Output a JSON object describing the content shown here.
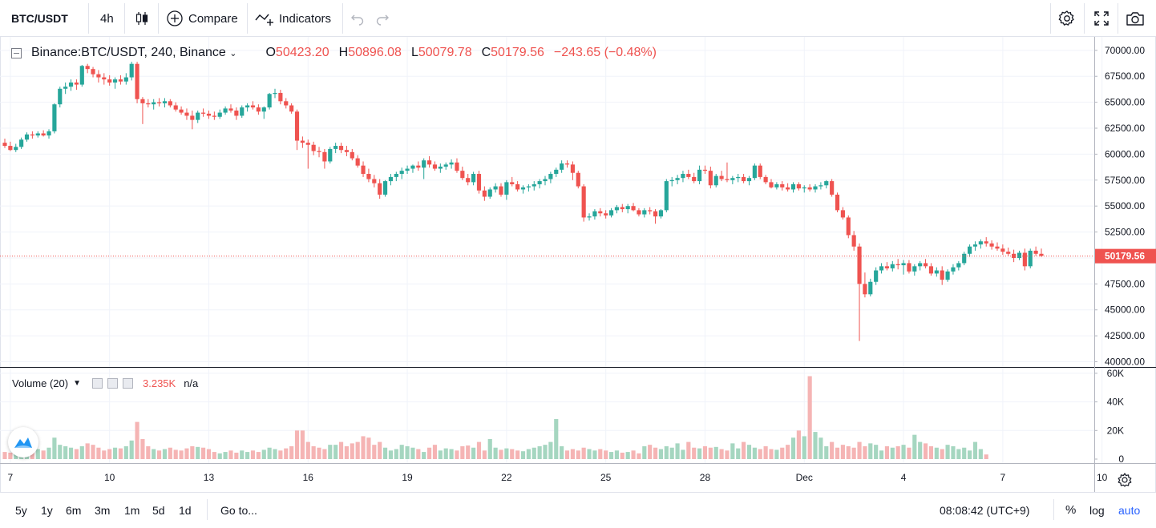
{
  "toolbar": {
    "symbol": "BTC/USDT",
    "interval": "4h",
    "compare_label": "Compare",
    "indicators_label": "Indicators"
  },
  "legend": {
    "title": "Binance:BTC/USDT, 240, Binance",
    "open_label": "O",
    "open": "50423.20",
    "high_label": "H",
    "high": "50896.08",
    "low_label": "L",
    "low": "50079.78",
    "close_label": "C",
    "close": "50179.56",
    "change": "−243.65 (−0.48%)"
  },
  "volume_legend": {
    "title": "Volume (20)",
    "value": "3.235K",
    "na": "n/a"
  },
  "price_axis": {
    "labels": [
      "70000.00",
      "67500.00",
      "65000.00",
      "62500.00",
      "60000.00",
      "57500.00",
      "55000.00",
      "52500.00",
      "47500.00",
      "45000.00",
      "42500.00",
      "40000.00"
    ],
    "values": [
      70000,
      67500,
      65000,
      62500,
      60000,
      57500,
      55000,
      52500,
      47500,
      45000,
      42500,
      40000
    ],
    "last_price_label": "50179.56",
    "last_price": 50179.56
  },
  "volume_axis": {
    "labels": [
      "60K",
      "40K",
      "20K",
      "0"
    ],
    "values": [
      60000,
      40000,
      20000,
      0
    ]
  },
  "time_axis": {
    "labels": [
      "7",
      "10",
      "13",
      "16",
      "19",
      "22",
      "25",
      "28",
      "Dec",
      "4",
      "7",
      "10"
    ],
    "dates": [
      "2021-11-07",
      "2021-11-10",
      "2021-11-13",
      "2021-11-16",
      "2021-11-19",
      "2021-11-22",
      "2021-11-25",
      "2021-11-28",
      "2021-12-01",
      "2021-12-04",
      "2021-12-07",
      "2021-12-10"
    ]
  },
  "bottom_bar": {
    "ranges": [
      "5y",
      "1y",
      "6m",
      "3m",
      "1m",
      "5d",
      "1d"
    ],
    "goto": "Go to...",
    "clock": "08:08:42 (UTC+9)",
    "percent": "%",
    "log": "log",
    "auto": "auto"
  },
  "colors": {
    "up": "#26a69a",
    "down": "#ef5350",
    "up_volume": "#a5d6c0",
    "down_volume": "#f5b4b4",
    "grid": "#f0f3fa",
    "axis_text": "#131722",
    "accent": "#2962ff"
  },
  "chart_data": {
    "type": "candlestick",
    "interval": "240",
    "y_range": [
      39500,
      71300
    ],
    "volume_range": [
      0,
      65000
    ],
    "first_bar": "2021-11-06T20:00",
    "last_bar": "2021-12-09T08:00",
    "ohlc": [
      [
        61100,
        61500,
        60600,
        60800
      ],
      [
        60800,
        61200,
        60300,
        60400
      ],
      [
        60400,
        61000,
        60200,
        60700
      ],
      [
        60700,
        61600,
        60500,
        61400
      ],
      [
        61400,
        62100,
        61200,
        61900
      ],
      [
        61900,
        62200,
        61500,
        61800
      ],
      [
        61800,
        62200,
        61600,
        62000
      ],
      [
        62000,
        62300,
        61700,
        61800
      ],
      [
        61800,
        62400,
        61500,
        62200
      ],
      [
        62200,
        64900,
        62000,
        64800
      ],
      [
        64800,
        66500,
        64500,
        66300
      ],
      [
        66300,
        66900,
        65800,
        66500
      ],
      [
        66500,
        67200,
        66100,
        66900
      ],
      [
        66900,
        67200,
        66200,
        66700
      ],
      [
        66700,
        68600,
        66500,
        68500
      ],
      [
        68500,
        68700,
        67800,
        68200
      ],
      [
        68200,
        68400,
        67400,
        67700
      ],
      [
        67700,
        68100,
        66900,
        67400
      ],
      [
        67400,
        67800,
        66700,
        67200
      ],
      [
        67200,
        67600,
        66600,
        66900
      ],
      [
        66900,
        67400,
        66300,
        67200
      ],
      [
        67200,
        67600,
        66700,
        67000
      ],
      [
        67000,
        67800,
        66700,
        67400
      ],
      [
        67400,
        68900,
        67100,
        68700
      ],
      [
        68700,
        68900,
        64900,
        65300
      ],
      [
        65300,
        65500,
        62900,
        64900
      ],
      [
        64900,
        65300,
        64500,
        64800
      ],
      [
        64800,
        65300,
        64300,
        65000
      ],
      [
        65000,
        65400,
        64600,
        64900
      ],
      [
        64900,
        65400,
        64500,
        65100
      ],
      [
        65100,
        65300,
        64500,
        64700
      ],
      [
        64700,
        65000,
        64100,
        64300
      ],
      [
        64300,
        64600,
        63800,
        64000
      ],
      [
        64000,
        64400,
        63300,
        63700
      ],
      [
        63700,
        64200,
        62400,
        63300
      ],
      [
        63300,
        64200,
        63000,
        64000
      ],
      [
        64000,
        64400,
        63600,
        63900
      ],
      [
        63900,
        64200,
        63400,
        63700
      ],
      [
        63700,
        64100,
        63300,
        63600
      ],
      [
        63600,
        64300,
        63400,
        64000
      ],
      [
        64000,
        64600,
        63800,
        64400
      ],
      [
        64400,
        64800,
        64000,
        64200
      ],
      [
        64200,
        64500,
        63300,
        63700
      ],
      [
        63700,
        64700,
        63500,
        64500
      ],
      [
        64500,
        64900,
        64100,
        64700
      ],
      [
        64700,
        65100,
        64300,
        64500
      ],
      [
        64500,
        64800,
        63800,
        64100
      ],
      [
        64100,
        64600,
        63400,
        64500
      ],
      [
        64500,
        65900,
        64300,
        65800
      ],
      [
        65800,
        66300,
        65400,
        65900
      ],
      [
        65900,
        66200,
        64800,
        65100
      ],
      [
        65100,
        65400,
        64400,
        64700
      ],
      [
        64700,
        64900,
        63900,
        64100
      ],
      [
        64100,
        64300,
        60400,
        61300
      ],
      [
        61300,
        61700,
        60600,
        61100
      ],
      [
        61100,
        61400,
        58600,
        60900
      ],
      [
        60900,
        61200,
        59900,
        60300
      ],
      [
        60300,
        60700,
        59700,
        60200
      ],
      [
        60200,
        60500,
        58600,
        59300
      ],
      [
        59300,
        60700,
        59100,
        60500
      ],
      [
        60500,
        61100,
        60100,
        60800
      ],
      [
        60800,
        61100,
        60100,
        60400
      ],
      [
        60400,
        60800,
        59800,
        60200
      ],
      [
        60200,
        60500,
        59400,
        59600
      ],
      [
        59600,
        59900,
        58700,
        58900
      ],
      [
        58900,
        59300,
        57800,
        58100
      ],
      [
        58100,
        58600,
        57300,
        57600
      ],
      [
        57600,
        58000,
        56800,
        57200
      ],
      [
        57200,
        57600,
        55700,
        56100
      ],
      [
        56100,
        57500,
        55900,
        57400
      ],
      [
        57400,
        58100,
        57000,
        57800
      ],
      [
        57800,
        58300,
        57400,
        58100
      ],
      [
        58100,
        58700,
        57600,
        58400
      ],
      [
        58400,
        58900,
        58100,
        58600
      ],
      [
        58600,
        59000,
        58200,
        58900
      ],
      [
        58900,
        59300,
        58400,
        58700
      ],
      [
        58700,
        59600,
        57600,
        59400
      ],
      [
        59400,
        59800,
        58700,
        59000
      ],
      [
        59000,
        59300,
        58400,
        58600
      ],
      [
        58600,
        59100,
        58200,
        58800
      ],
      [
        58800,
        59200,
        58500,
        59000
      ],
      [
        59000,
        59500,
        58600,
        59200
      ],
      [
        59200,
        59600,
        58200,
        58400
      ],
      [
        58400,
        58800,
        57500,
        57700
      ],
      [
        57700,
        58100,
        57000,
        57300
      ],
      [
        57300,
        58300,
        57000,
        58100
      ],
      [
        58100,
        58400,
        56200,
        56500
      ],
      [
        56500,
        56900,
        55500,
        55900
      ],
      [
        55900,
        56800,
        55700,
        56600
      ],
      [
        56600,
        57200,
        56300,
        56900
      ],
      [
        56900,
        57200,
        55900,
        56100
      ],
      [
        56100,
        57500,
        55600,
        57300
      ],
      [
        57300,
        57800,
        56900,
        57100
      ],
      [
        57100,
        57400,
        56400,
        56600
      ],
      [
        56600,
        57000,
        56200,
        56800
      ],
      [
        56800,
        57100,
        56400,
        56900
      ],
      [
        56900,
        57400,
        56500,
        57100
      ],
      [
        57100,
        57600,
        56700,
        57400
      ],
      [
        57400,
        57900,
        57000,
        57600
      ],
      [
        57600,
        58300,
        57200,
        58100
      ],
      [
        58100,
        58700,
        57800,
        58500
      ],
      [
        58500,
        59400,
        58200,
        59100
      ],
      [
        59100,
        59400,
        58700,
        59000
      ],
      [
        59000,
        59300,
        57500,
        58200
      ],
      [
        58200,
        58400,
        56700,
        56900
      ],
      [
        56900,
        57100,
        53500,
        53900
      ],
      [
        53900,
        54300,
        53600,
        54000
      ],
      [
        54000,
        54700,
        53700,
        54500
      ],
      [
        54500,
        54800,
        54000,
        54300
      ],
      [
        54300,
        54600,
        53800,
        54100
      ],
      [
        54100,
        54800,
        53900,
        54600
      ],
      [
        54600,
        55100,
        54300,
        54900
      ],
      [
        54900,
        55200,
        54400,
        54700
      ],
      [
        54700,
        55200,
        54300,
        55000
      ],
      [
        55000,
        55300,
        54500,
        54600
      ],
      [
        54600,
        54800,
        54000,
        54200
      ],
      [
        54200,
        54800,
        53900,
        54600
      ],
      [
        54600,
        54900,
        54200,
        54500
      ],
      [
        54500,
        54700,
        53300,
        54000
      ],
      [
        54000,
        54700,
        53800,
        54600
      ],
      [
        54600,
        57600,
        54400,
        57400
      ],
      [
        57400,
        57800,
        56900,
        57500
      ],
      [
        57500,
        58000,
        57100,
        57700
      ],
      [
        57700,
        58400,
        57300,
        58100
      ],
      [
        58100,
        58500,
        57600,
        57800
      ],
      [
        57800,
        58200,
        57200,
        57400
      ],
      [
        57400,
        58900,
        57100,
        58500
      ],
      [
        58500,
        58900,
        58100,
        58400
      ],
      [
        58400,
        58800,
        56700,
        57000
      ],
      [
        57000,
        58100,
        56800,
        57900
      ],
      [
        57900,
        58400,
        57400,
        57600
      ],
      [
        57600,
        59200,
        57300,
        57500
      ],
      [
        57500,
        57900,
        57100,
        57700
      ],
      [
        57700,
        58100,
        57300,
        57800
      ],
      [
        57800,
        58100,
        57200,
        57400
      ],
      [
        57400,
        57900,
        57000,
        57700
      ],
      [
        57700,
        59100,
        57500,
        58900
      ],
      [
        58900,
        59100,
        57600,
        57800
      ],
      [
        57800,
        58000,
        57100,
        57300
      ],
      [
        57300,
        57600,
        56700,
        56800
      ],
      [
        56800,
        57300,
        56600,
        57100
      ],
      [
        57100,
        57400,
        56500,
        56800
      ],
      [
        56800,
        57200,
        56400,
        56600
      ],
      [
        56600,
        57300,
        56300,
        57100
      ],
      [
        57100,
        57300,
        56500,
        56700
      ],
      [
        56700,
        57000,
        56300,
        56800
      ],
      [
        56800,
        57100,
        56400,
        56600
      ],
      [
        56600,
        57100,
        56300,
        56900
      ],
      [
        56900,
        57300,
        56600,
        57000
      ],
      [
        57000,
        57500,
        56700,
        57400
      ],
      [
        57400,
        57600,
        55900,
        56100
      ],
      [
        56100,
        56300,
        54400,
        54600
      ],
      [
        54600,
        54900,
        53700,
        53900
      ],
      [
        53900,
        54100,
        51900,
        52200
      ],
      [
        52200,
        52600,
        50700,
        51100
      ],
      [
        51100,
        51400,
        42000,
        47500
      ],
      [
        47500,
        48600,
        46200,
        46500
      ],
      [
        46500,
        48000,
        46300,
        47700
      ],
      [
        47700,
        49100,
        47400,
        48800
      ],
      [
        48800,
        49500,
        48500,
        49200
      ],
      [
        49200,
        49600,
        48800,
        49000
      ],
      [
        49000,
        49700,
        48700,
        49400
      ],
      [
        49400,
        49900,
        48900,
        49300
      ],
      [
        49300,
        49800,
        48400,
        49500
      ],
      [
        49500,
        49800,
        48500,
        48700
      ],
      [
        48700,
        49400,
        48300,
        49200
      ],
      [
        49200,
        49700,
        48800,
        49500
      ],
      [
        49500,
        49900,
        49000,
        49200
      ],
      [
        49200,
        49500,
        48300,
        48500
      ],
      [
        48500,
        49100,
        48200,
        48800
      ],
      [
        48800,
        49200,
        47400,
        47900
      ],
      [
        47900,
        48900,
        47700,
        48700
      ],
      [
        48700,
        49400,
        48400,
        49100
      ],
      [
        49100,
        49700,
        48800,
        49500
      ],
      [
        49500,
        50600,
        49300,
        50400
      ],
      [
        50400,
        51300,
        50100,
        51100
      ],
      [
        51100,
        51600,
        50700,
        51300
      ],
      [
        51300,
        51800,
        50900,
        51600
      ],
      [
        51600,
        52000,
        51100,
        51400
      ],
      [
        51400,
        51700,
        50800,
        51100
      ],
      [
        51100,
        51500,
        50700,
        50900
      ],
      [
        50900,
        51300,
        50300,
        50600
      ],
      [
        50600,
        51000,
        50200,
        50400
      ],
      [
        50400,
        50800,
        49600,
        50000
      ],
      [
        50000,
        50700,
        49800,
        50500
      ],
      [
        50500,
        50900,
        48800,
        49200
      ],
      [
        49200,
        50900,
        49000,
        50700
      ],
      [
        50700,
        51100,
        50200,
        50400
      ],
      [
        50400,
        50900,
        50100,
        50200
      ]
    ],
    "volume": [
      5000,
      4500,
      6000,
      4000,
      5500,
      5000,
      7000,
      6000,
      8000,
      15000,
      10000,
      9000,
      8000,
      7000,
      9000,
      11000,
      10000,
      8000,
      6000,
      7000,
      8000,
      7500,
      9000,
      13000,
      26000,
      14000,
      9000,
      7000,
      6000,
      7000,
      8000,
      6500,
      6000,
      7500,
      9000,
      8500,
      8000,
      7000,
      5000,
      4000,
      5000,
      6000,
      4500,
      6000,
      5000,
      6000,
      5000,
      6500,
      8000,
      7000,
      6000,
      7500,
      9000,
      20000,
      20000,
      12000,
      9000,
      8000,
      7000,
      10000,
      10000,
      12000,
      9000,
      11000,
      12000,
      16000,
      15000,
      10000,
      12000,
      8000,
      6000,
      7000,
      10000,
      9000,
      8000,
      7000,
      5000,
      8000,
      10000,
      6000,
      7500,
      7000,
      6000,
      9000,
      9500,
      8000,
      12000,
      6000,
      14000,
      8000,
      6500,
      7500,
      7000,
      6000,
      5500,
      7000,
      8000,
      9000,
      10000,
      12000,
      28000,
      9000,
      6000,
      7000,
      6000,
      8000,
      7000,
      6000,
      7000,
      6000,
      5000,
      6000,
      4500,
      5000,
      6000,
      4000,
      9000,
      10000,
      8000,
      7000,
      9000,
      8000,
      11000,
      6500,
      12000,
      8000,
      7500,
      9000,
      8000,
      8500,
      7000,
      6000,
      11000,
      7500,
      12000,
      10000,
      8000,
      7000,
      9000,
      7000,
      6500,
      8000,
      10000,
      15000,
      20000,
      16000,
      58000,
      19000,
      15000,
      9000,
      12000,
      8000,
      10000,
      9000,
      8000,
      12000,
      9000,
      11000,
      10000,
      6000,
      9000,
      8000,
      9000,
      10000,
      8000,
      17000,
      12000,
      11000,
      9000,
      8000,
      7000,
      10000,
      9000,
      7000,
      8000,
      6000,
      12000,
      7000,
      3235
    ]
  }
}
